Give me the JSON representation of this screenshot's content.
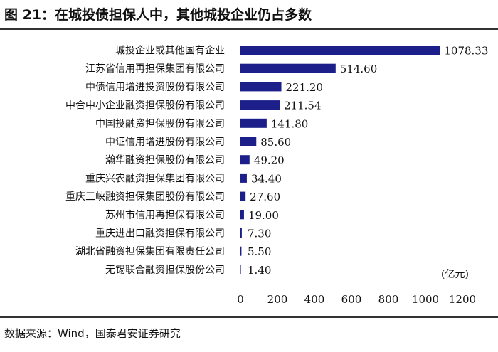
{
  "title": "图 21：在城投债担保人中，其他城投企业仍占多数",
  "source": "数据来源：Wind，国泰君安证券研究",
  "colors": {
    "bar": "#1c1f8a",
    "text": "#111111",
    "axis": "#333333"
  },
  "chart_data": {
    "type": "bar",
    "orientation": "horizontal",
    "unit_label": "(亿元)",
    "categories": [
      "城投企业或其他国有企业",
      "江苏省信用再担保集团有限公司",
      "中债信用增进投资股份有限公司",
      "中合中小企业融资担保股份有限公司",
      "中国投融资担保股份有限公司",
      "中证信用增进股份有限公司",
      "瀚华融资担保股份有限公司",
      "重庆兴农融资担保集团有限公司",
      "重庆三峡融资担保集团股份有限公司",
      "苏州市信用再担保有限公司",
      "重庆进出口融资担保有限公司",
      "湖北省融资担保集团有限责任公司",
      "无锡联合融资担保股份公司"
    ],
    "values": [
      1078.33,
      514.6,
      221.2,
      211.54,
      141.8,
      85.6,
      49.2,
      34.4,
      27.6,
      19.0,
      7.3,
      5.5,
      1.4
    ],
    "value_labels": [
      "1078.33",
      "514.60",
      "221.20",
      "211.54",
      "141.80",
      "85.60",
      "49.20",
      "34.40",
      "27.60",
      "19.00",
      "7.30",
      "5.50",
      "1.40"
    ],
    "xlim": [
      0,
      1200
    ],
    "xticks": [
      0,
      200,
      400,
      600,
      800,
      1000,
      1200
    ],
    "xtick_labels": [
      "0",
      "200",
      "400",
      "600",
      "800",
      "1000",
      "1200"
    ],
    "grid": false,
    "legend": "none"
  }
}
